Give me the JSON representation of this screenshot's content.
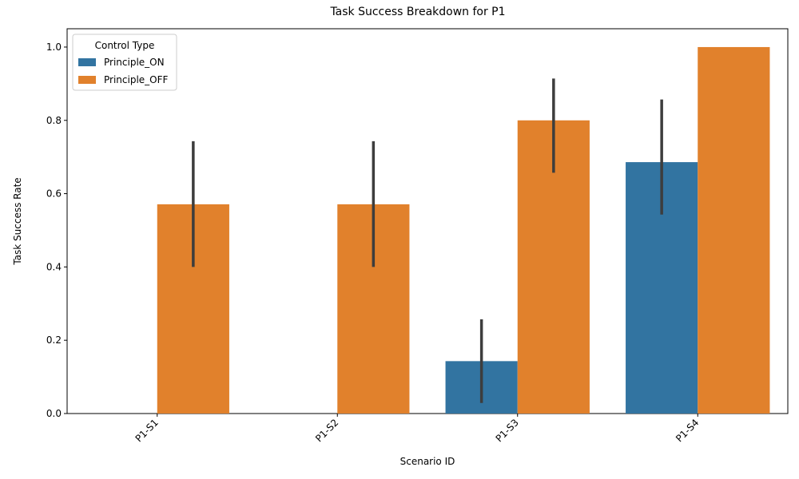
{
  "chart_data": {
    "type": "bar",
    "title": "Task Success Breakdown for P1",
    "xlabel": "Scenario ID",
    "ylabel": "Task Success Rate",
    "categories": [
      "P1-S1",
      "P1-S2",
      "P1-S3",
      "P1-S4"
    ],
    "ylim": [
      0,
      1.05
    ],
    "yticks": [
      0.0,
      0.2,
      0.4,
      0.6,
      0.8,
      1.0
    ],
    "ytick_labels": [
      "0.0",
      "0.2",
      "0.4",
      "0.6",
      "0.8",
      "1.0"
    ],
    "legend": {
      "title": "Control Type",
      "position": "top-left"
    },
    "series": [
      {
        "name": "Principle_ON",
        "color": "#3274a1",
        "values": [
          0.0,
          0.0,
          0.143,
          0.686
        ],
        "error_low": [
          null,
          null,
          0.029,
          0.543
        ],
        "error_high": [
          null,
          null,
          0.257,
          0.857
        ]
      },
      {
        "name": "Principle_OFF",
        "color": "#e1812c",
        "values": [
          0.571,
          0.571,
          0.8,
          1.0
        ],
        "error_low": [
          0.4,
          0.4,
          0.657,
          null
        ],
        "error_high": [
          0.743,
          0.743,
          0.914,
          null
        ]
      }
    ]
  }
}
